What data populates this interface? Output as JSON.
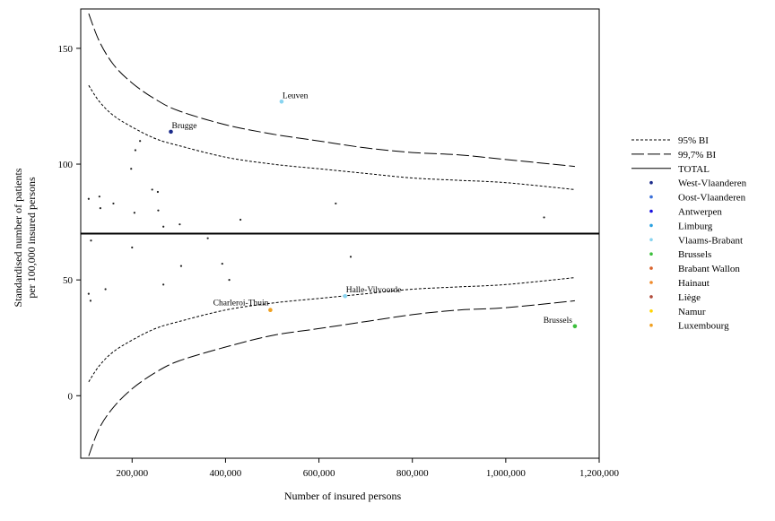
{
  "chart_data": {
    "type": "scatter",
    "title": "",
    "xlabel": "Number of insured persons",
    "ylabel_lines": [
      "Standardised number of patients",
      "per 100,000 insured persons"
    ],
    "xlim": [
      90000,
      1200000
    ],
    "ylim": [
      -27,
      167
    ],
    "x_ticks": [
      200000,
      400000,
      600000,
      800000,
      1000000,
      1200000
    ],
    "x_tick_labels": [
      "200,000",
      "400,000",
      "600,000",
      "800,000",
      "1,000,000",
      "1,200,000"
    ],
    "y_ticks": [
      0,
      50,
      100,
      150
    ],
    "y_tick_labels": [
      "0",
      "50",
      "100",
      "150"
    ],
    "grid": false,
    "legend_position": "right",
    "total_value": 70,
    "x_range_curves": [
      107000,
      1148000
    ],
    "legend": {
      "ci95": "95% BI",
      "ci997": "99,7% BI",
      "total": "TOTAL",
      "provinces": [
        {
          "name": "West-Vlaanderen",
          "color": "#1a2a8a"
        },
        {
          "name": "Oost-Vlaanderen",
          "color": "#3a6fd8"
        },
        {
          "name": "Antwerpen",
          "color": "#1a10e0"
        },
        {
          "name": "Limburg",
          "color": "#2aa0e0"
        },
        {
          "name": "Vlaams-Brabant",
          "color": "#88d4f0"
        },
        {
          "name": "Brussels",
          "color": "#3cbf3c"
        },
        {
          "name": "Brabant Wallon",
          "color": "#d9622b"
        },
        {
          "name": "Hainaut",
          "color": "#f08a2a"
        },
        {
          "name": "Liège",
          "color": "#b04a3a"
        },
        {
          "name": "Namur",
          "color": "#ffd400"
        },
        {
          "name": "Luxembourg",
          "color": "#f0a020"
        }
      ]
    },
    "labeled_points": [
      {
        "label": "Leuven",
        "x": 520000,
        "y": 127,
        "color": "#88d4f0"
      },
      {
        "label": "Brugge",
        "x": 283000,
        "y": 114,
        "color": "#1a2a8a"
      },
      {
        "label": "Halle-Vilvoorde",
        "x": 656000,
        "y": 43,
        "color": "#88d4f0"
      },
      {
        "label": "Charleroi-Thuin",
        "x": 496000,
        "y": 37,
        "color": "#f0a020"
      },
      {
        "label": "Brussels",
        "x": 1148000,
        "y": 30,
        "color": "#3cbf3c"
      }
    ],
    "small_points": [
      {
        "x": 107000,
        "y": 85
      },
      {
        "x": 130000,
        "y": 86
      },
      {
        "x": 132000,
        "y": 81
      },
      {
        "x": 160000,
        "y": 83
      },
      {
        "x": 198000,
        "y": 98
      },
      {
        "x": 207000,
        "y": 106
      },
      {
        "x": 217000,
        "y": 110
      },
      {
        "x": 205000,
        "y": 79
      },
      {
        "x": 243000,
        "y": 89
      },
      {
        "x": 255000,
        "y": 88
      },
      {
        "x": 256000,
        "y": 80
      },
      {
        "x": 267000,
        "y": 73
      },
      {
        "x": 302000,
        "y": 74
      },
      {
        "x": 432000,
        "y": 76
      },
      {
        "x": 636000,
        "y": 83
      },
      {
        "x": 1082000,
        "y": 77
      },
      {
        "x": 112000,
        "y": 67
      },
      {
        "x": 200000,
        "y": 64
      },
      {
        "x": 362000,
        "y": 68
      },
      {
        "x": 393000,
        "y": 57
      },
      {
        "x": 305000,
        "y": 56
      },
      {
        "x": 408000,
        "y": 50
      },
      {
        "x": 668000,
        "y": 60
      },
      {
        "x": 107000,
        "y": 44
      },
      {
        "x": 111000,
        "y": 41
      },
      {
        "x": 143000,
        "y": 46
      },
      {
        "x": 267000,
        "y": 48
      }
    ],
    "ci95": {
      "x": [
        107000,
        130000,
        160000,
        200000,
        250000,
        300000,
        400000,
        500000,
        600000,
        700000,
        800000,
        900000,
        1000000,
        1148000
      ],
      "upper": [
        134,
        127,
        121,
        116,
        111,
        108,
        103,
        100,
        98,
        96,
        94,
        93,
        92,
        89
      ],
      "lower": [
        6,
        13,
        19,
        24,
        29,
        32,
        37,
        40,
        42,
        44,
        46,
        47,
        48,
        51
      ]
    },
    "ci997": {
      "x": [
        107000,
        130000,
        160000,
        200000,
        250000,
        300000,
        400000,
        500000,
        600000,
        700000,
        800000,
        900000,
        1000000,
        1148000
      ],
      "upper": [
        165,
        153,
        143,
        135,
        128,
        123,
        117,
        113,
        110,
        107,
        105,
        104,
        102,
        99
      ],
      "lower": [
        -26,
        -14,
        -5,
        3,
        10,
        15,
        21,
        26,
        29,
        32,
        35,
        37,
        38,
        41
      ]
    }
  }
}
